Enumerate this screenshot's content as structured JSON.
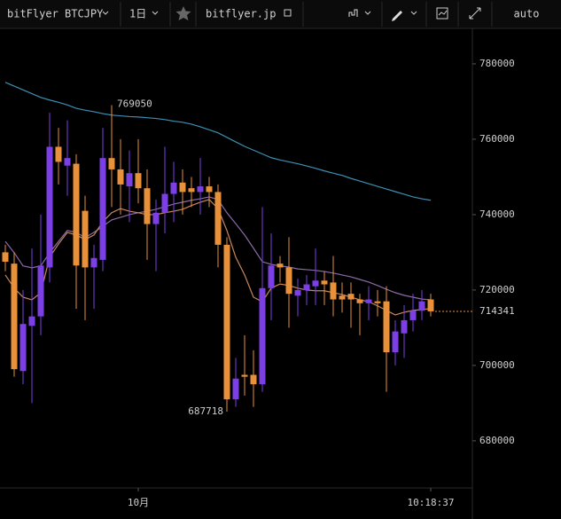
{
  "toolbar": {
    "symbol": "bitFlyer BTCJPY",
    "interval": "1日",
    "source": "bitflyer.jp",
    "scale": "auto"
  },
  "chart_data": {
    "type": "candlestick",
    "categories": [
      null,
      null,
      null,
      null,
      null,
      null,
      null,
      null,
      null,
      null,
      null,
      null,
      null,
      null,
      null,
      "10月",
      null,
      null,
      null,
      null,
      null,
      null,
      null,
      null,
      null,
      null,
      null,
      null,
      null,
      null,
      null,
      null,
      null,
      null,
      null,
      null,
      null,
      null,
      null,
      null,
      null,
      null,
      null,
      null,
      null,
      null,
      null,
      null,
      "10:18:37"
    ],
    "open": [
      730000,
      727000,
      698500,
      710500,
      713000,
      726000,
      758000,
      753000,
      753500,
      741000,
      726000,
      728000,
      755000,
      752000,
      747500,
      751000,
      747000,
      737500,
      740500,
      745500,
      748500,
      747000,
      746000,
      747500,
      746000,
      732000,
      691000,
      697500,
      697500,
      695000,
      720500,
      727000,
      726000,
      718500,
      720000,
      721000,
      722500,
      722000,
      718500,
      719000,
      717500,
      716500,
      717000,
      717000,
      703500,
      708500,
      712000,
      714500,
      717500
    ],
    "high": [
      732000,
      730000,
      720000,
      731000,
      740000,
      767000,
      763000,
      765000,
      756000,
      745000,
      732000,
      763000,
      769050,
      760000,
      757000,
      760000,
      752000,
      744000,
      758000,
      754000,
      752000,
      750000,
      755000,
      750000,
      748000,
      734000,
      702000,
      708000,
      704000,
      742000,
      735000,
      729000,
      734000,
      723000,
      724000,
      731000,
      725000,
      729000,
      722000,
      722000,
      719000,
      721000,
      720000,
      721000,
      712000,
      716000,
      719000,
      720000,
      719000
    ],
    "low": [
      725000,
      697000,
      695000,
      690000,
      708000,
      722000,
      748000,
      745000,
      715000,
      712000,
      715000,
      725000,
      742000,
      740000,
      738000,
      743000,
      728000,
      725000,
      735000,
      738000,
      740000,
      742000,
      740000,
      742000,
      726000,
      687718,
      689000,
      692000,
      689000,
      693000,
      712000,
      722000,
      710000,
      713000,
      716000,
      716000,
      716000,
      713000,
      714000,
      710000,
      708000,
      712000,
      713000,
      693000,
      700000,
      702000,
      709000,
      712000,
      713000
    ],
    "close": [
      727500,
      699000,
      711000,
      713000,
      726500,
      758000,
      754000,
      755000,
      726500,
      726000,
      728500,
      755000,
      752000,
      748000,
      751000,
      747000,
      737500,
      740500,
      745500,
      748500,
      746000,
      746000,
      747500,
      746000,
      732000,
      691000,
      696500,
      697000,
      695000,
      720500,
      726500,
      726000,
      719000,
      720000,
      721500,
      722500,
      721500,
      717500,
      717500,
      717500,
      716500,
      717500,
      716500,
      703500,
      709000,
      712000,
      714500,
      717000,
      714341
    ],
    "up_color": "#7b3fe4",
    "down_color": "#e8913a",
    "series": [
      {
        "color": "#3d8fb5",
        "values": [
          775100,
          774100,
          773100,
          772100,
          771100,
          770400,
          769800,
          769100,
          768200,
          767700,
          767300,
          766800,
          766400,
          766200,
          766000,
          765900,
          765700,
          765500,
          765200,
          764800,
          764500,
          764000,
          763300,
          762500,
          761700,
          760500,
          759300,
          758100,
          757100,
          756100,
          755100,
          754500,
          754000,
          753500,
          752900,
          752300,
          751600,
          751000,
          750400,
          749600,
          748900,
          748200,
          747500,
          746800,
          746100,
          745400,
          744700,
          744200,
          743800
        ]
      },
      {
        "color": "#8c6aa8",
        "values": [
          732900,
          729900,
          726400,
          725900,
          726400,
          729900,
          732900,
          735800,
          735300,
          733900,
          735300,
          736900,
          738600,
          739300,
          740000,
          740500,
          740900,
          741400,
          742100,
          742800,
          743300,
          743800,
          744200,
          744700,
          744000,
          740500,
          737600,
          734600,
          731100,
          727500,
          726800,
          726400,
          726100,
          725600,
          725400,
          725200,
          724900,
          724500,
          724000,
          723500,
          722800,
          722100,
          721200,
          720200,
          719300,
          718600,
          718100,
          717600,
          717400
        ]
      },
      {
        "color": "#c8875a",
        "values": [
          724000,
          720500,
          718100,
          717400,
          719300,
          728700,
          732200,
          735300,
          734600,
          733400,
          734600,
          738100,
          740500,
          741600,
          740900,
          740500,
          740000,
          740000,
          740500,
          740900,
          741400,
          742400,
          743300,
          744000,
          741600,
          735800,
          728700,
          724000,
          718100,
          716900,
          720500,
          721600,
          721200,
          720500,
          720000,
          719800,
          719800,
          719300,
          718800,
          718100,
          717400,
          716900,
          715800,
          714600,
          713400,
          714100,
          714600,
          714800,
          715100
        ]
      }
    ],
    "last_price": 714341,
    "high_label": 769050,
    "low_label": 687718,
    "ylim": [
      667500,
      789400
    ],
    "yticks": [
      680000,
      700000,
      720000,
      740000,
      760000,
      780000
    ]
  }
}
